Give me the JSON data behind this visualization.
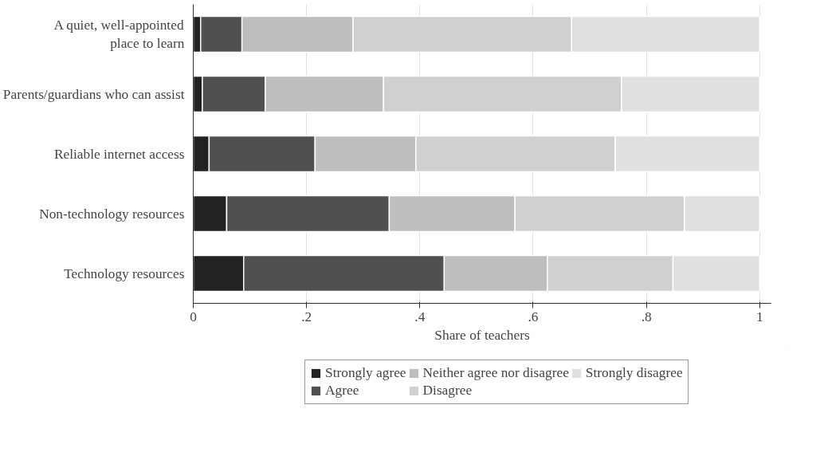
{
  "chart_data": {
    "type": "bar",
    "orientation": "horizontal",
    "stacked": true,
    "categories": [
      "A quiet, well-appointed\nplace to learn",
      "Parents/guardians who can assist",
      "Reliable internet access",
      "Non-technology resources",
      "Technology resources"
    ],
    "series": [
      {
        "name": "Strongly agree",
        "color": "#222222",
        "values": [
          0.013,
          0.016,
          0.028,
          0.059,
          0.089
        ]
      },
      {
        "name": "Agree",
        "color": "#505050",
        "values": [
          0.073,
          0.111,
          0.187,
          0.287,
          0.354
        ]
      },
      {
        "name": "Neither agree nor disagree",
        "color": "#bebebe",
        "values": [
          0.196,
          0.209,
          0.178,
          0.222,
          0.182
        ]
      },
      {
        "name": "Disagree",
        "color": "#d0d0d0",
        "values": [
          0.386,
          0.42,
          0.352,
          0.299,
          0.222
        ]
      },
      {
        "name": "Strongly disagree",
        "color": "#e0e0e0",
        "values": [
          0.332,
          0.244,
          0.255,
          0.133,
          0.153
        ]
      }
    ],
    "xlabel": "Share of teachers",
    "xlim": [
      0,
      1.02
    ],
    "xticks": [
      0,
      {
        "value": 0.2,
        "label": ".2"
      },
      {
        "value": 0.4,
        "label": ".4"
      },
      {
        "value": 0.6,
        "label": ".6"
      },
      {
        "value": 0.8,
        "label": ".8"
      },
      1
    ],
    "grid": "x",
    "legend": "bottom"
  }
}
